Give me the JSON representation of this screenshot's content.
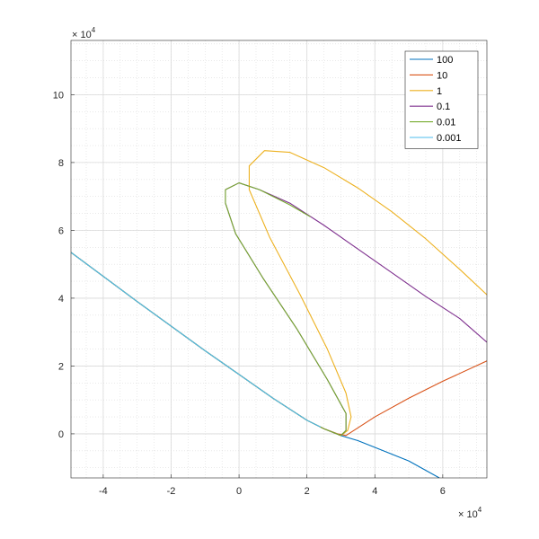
{
  "chart_data": {
    "type": "line",
    "title": "",
    "xlabel": "",
    "ylabel": "",
    "x_scale_label": "× 10",
    "x_scale_exponent": "4",
    "y_scale_label": "× 10",
    "y_scale_exponent": "4",
    "xlim": [
      -4.95,
      7.3
    ],
    "ylim": [
      -1.3,
      11.6
    ],
    "xticks": [
      -4,
      -2,
      0,
      2,
      4,
      6
    ],
    "yticks": [
      0,
      2,
      4,
      6,
      8,
      10
    ],
    "xtick_labels": [
      "-4",
      "-2",
      "0",
      "2",
      "4",
      "6"
    ],
    "ytick_labels": [
      "0",
      "2",
      "4",
      "6",
      "8",
      "10"
    ],
    "grid": "on (major and minor)",
    "legend_position": "top-right",
    "units_note": "values shown in units of 10^4 as printed on axes",
    "series": [
      {
        "name": "100",
        "color": "#0072BD",
        "points": [
          [
            -4.95,
            5.35
          ],
          [
            -3,
            3.9
          ],
          [
            -1,
            2.45
          ],
          [
            0,
            1.75
          ],
          [
            1,
            1.05
          ],
          [
            2,
            0.4
          ],
          [
            2.5,
            0.15
          ],
          [
            3,
            -0.05
          ],
          [
            3.5,
            -0.2
          ],
          [
            4,
            -0.4
          ],
          [
            5,
            -0.8
          ],
          [
            5.9,
            -1.3
          ]
        ]
      },
      {
        "name": "10",
        "color": "#D95319",
        "points": [
          [
            -4.95,
            5.35
          ],
          [
            -3,
            3.9
          ],
          [
            -1,
            2.45
          ],
          [
            0,
            1.75
          ],
          [
            1,
            1.05
          ],
          [
            2,
            0.4
          ],
          [
            2.5,
            0.15
          ],
          [
            2.9,
            0.0
          ],
          [
            3.15,
            -0.05
          ],
          [
            4,
            0.5
          ],
          [
            5,
            1.05
          ],
          [
            6,
            1.55
          ],
          [
            7.3,
            2.15
          ]
        ]
      },
      {
        "name": "1",
        "color": "#EDB120",
        "points": [
          [
            -4.95,
            5.35
          ],
          [
            -3,
            3.9
          ],
          [
            -1,
            2.45
          ],
          [
            0,
            1.75
          ],
          [
            1,
            1.05
          ],
          [
            2,
            0.4
          ],
          [
            2.5,
            0.15
          ],
          [
            3.0,
            -0.05
          ],
          [
            3.2,
            0.1
          ],
          [
            3.3,
            0.5
          ],
          [
            3.15,
            1.2
          ],
          [
            2.6,
            2.5
          ],
          [
            1.8,
            4.1
          ],
          [
            0.9,
            5.8
          ],
          [
            0.3,
            7.2
          ],
          [
            0.3,
            7.9
          ],
          [
            0.75,
            8.35
          ],
          [
            1.5,
            8.3
          ],
          [
            2.5,
            7.85
          ],
          [
            3.5,
            7.25
          ],
          [
            4.5,
            6.55
          ],
          [
            5.5,
            5.75
          ],
          [
            6.5,
            4.85
          ],
          [
            7.3,
            4.1
          ]
        ]
      },
      {
        "name": "0.1",
        "color": "#7E2F8E",
        "points": [
          [
            -4.95,
            5.35
          ],
          [
            -3,
            3.9
          ],
          [
            -1,
            2.45
          ],
          [
            0,
            1.75
          ],
          [
            1,
            1.05
          ],
          [
            2,
            0.4
          ],
          [
            2.5,
            0.15
          ],
          [
            3.0,
            -0.05
          ],
          [
            3.15,
            0.1
          ],
          [
            3.15,
            0.6
          ],
          [
            2.6,
            1.6
          ],
          [
            1.7,
            3.1
          ],
          [
            0.7,
            4.6
          ],
          [
            -0.1,
            5.9
          ],
          [
            -0.4,
            6.8
          ],
          [
            -0.4,
            7.2
          ],
          [
            0,
            7.4
          ],
          [
            0.6,
            7.2
          ],
          [
            1.5,
            6.8
          ],
          [
            2.5,
            6.15
          ],
          [
            3.5,
            5.45
          ],
          [
            4.5,
            4.75
          ],
          [
            5.5,
            4.05
          ],
          [
            6.5,
            3.4
          ],
          [
            7.3,
            2.7
          ]
        ]
      },
      {
        "name": "0.01",
        "color": "#77AC30",
        "points": [
          [
            -4.95,
            5.35
          ],
          [
            -3,
            3.9
          ],
          [
            -1,
            2.45
          ],
          [
            0,
            1.75
          ],
          [
            1,
            1.05
          ],
          [
            2,
            0.4
          ],
          [
            2.5,
            0.15
          ],
          [
            3.0,
            -0.05
          ],
          [
            3.15,
            0.1
          ],
          [
            3.15,
            0.6
          ],
          [
            2.6,
            1.6
          ],
          [
            1.7,
            3.1
          ],
          [
            0.7,
            4.6
          ],
          [
            -0.1,
            5.9
          ],
          [
            -0.4,
            6.8
          ],
          [
            -0.4,
            7.2
          ],
          [
            0,
            7.4
          ],
          [
            0.6,
            7.2
          ],
          [
            1.5,
            6.75
          ],
          [
            2.1,
            6.4
          ]
        ]
      },
      {
        "name": "0.001",
        "color": "#4DBEEE",
        "points": [
          [
            -4.95,
            5.35
          ],
          [
            -3,
            3.9
          ],
          [
            -1,
            2.45
          ],
          [
            0,
            1.75
          ],
          [
            1,
            1.05
          ],
          [
            2,
            0.4
          ],
          [
            2.4,
            0.2
          ]
        ]
      }
    ]
  }
}
